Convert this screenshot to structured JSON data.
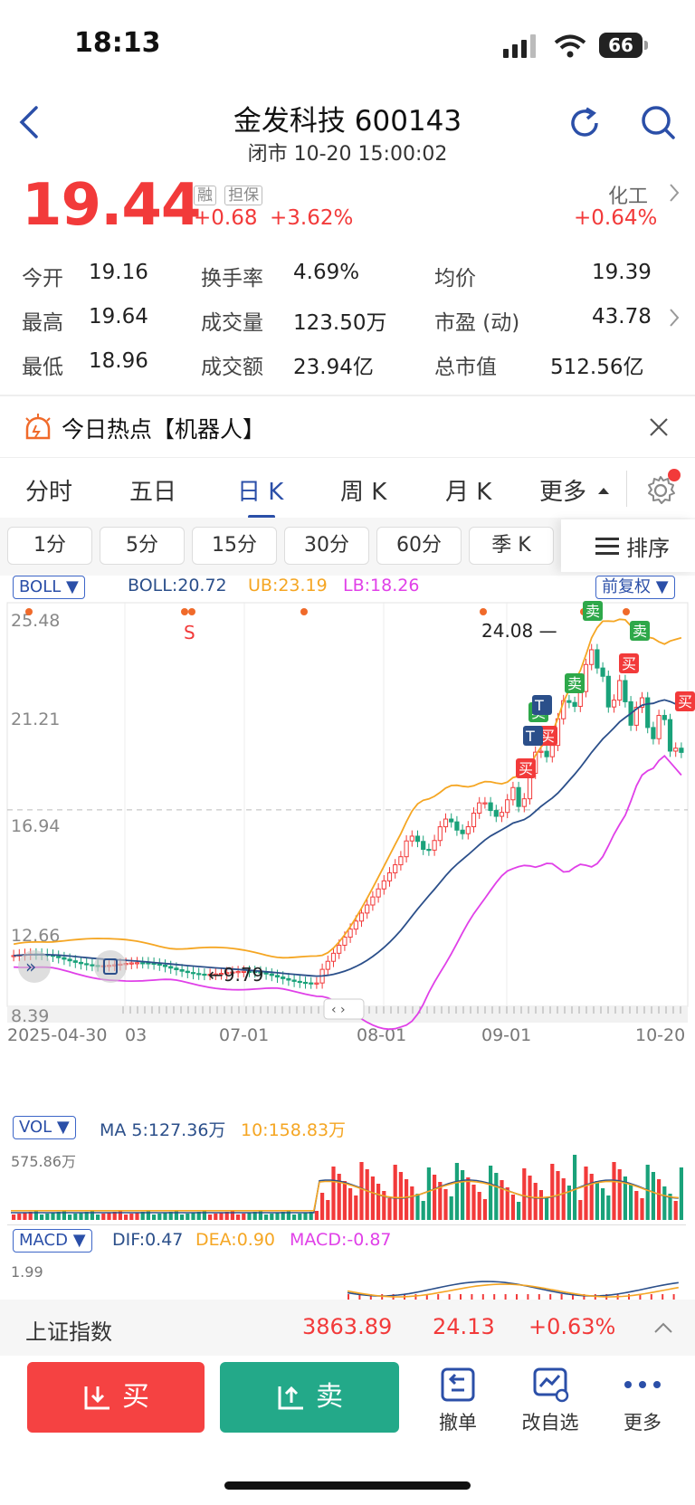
{
  "status_bar": {
    "time": "18:13",
    "battery": "66"
  },
  "header": {
    "title": "金发科技 600143",
    "subtitle": "闭市 10-20 15:00:02"
  },
  "quote": {
    "price": "19.44",
    "tag1": "融",
    "tag2": "担保",
    "change": "+0.68",
    "change_pct": "+3.62%",
    "sector_name": "化工",
    "sector_change": "+0.64%"
  },
  "stats": {
    "open_label": "今开",
    "open": "19.16",
    "turnover_label": "换手率",
    "turnover": "4.69%",
    "avg_label": "均价",
    "avg": "19.39",
    "high_label": "最高",
    "high": "19.64",
    "volume_label": "成交量",
    "volume": "123.50万",
    "pe_label": "市盈 (动)",
    "pe": "43.78",
    "low_label": "最低",
    "low": "18.96",
    "amount_label": "成交额",
    "amount": "23.94亿",
    "mcap_label": "总市值",
    "mcap": "512.56亿"
  },
  "hotspot": {
    "text": "今日热点【机器人】"
  },
  "tabs": [
    "分时",
    "五日",
    "日 K",
    "周 K",
    "月 K",
    "更多"
  ],
  "periods": [
    "1分",
    "5分",
    "15分",
    "30分",
    "60分",
    "季 K"
  ],
  "sort_label": "排序",
  "boll": {
    "name": "BOLL",
    "boll": "BOLL:20.72",
    "ub": "UB:23.19",
    "lb": "LB:18.26",
    "adjust": "前复权"
  },
  "chart_data": {
    "type": "candlestick",
    "y_ticks": [
      "25.48",
      "21.21",
      "16.94",
      "12.66",
      "8.39"
    ],
    "x_ticks": [
      "2025-04-30",
      "03",
      "07-01",
      "08-01",
      "09-01",
      "10-20"
    ],
    "max_label": "24.08",
    "min_label": "9.79",
    "last_close": 19.44,
    "reference_line": 16.94,
    "markers": {
      "s": "S",
      "buy": "买",
      "sell": "卖",
      "t": "T"
    },
    "colors": {
      "up": "#f23a3a",
      "down": "#1aa27a",
      "ub": "#f5a623",
      "mid": "#2b4f8a",
      "lb": "#e040e8"
    }
  },
  "vol": {
    "name": "VOL",
    "ma5": "MA 5:127.36万",
    "ma10": "10:158.83万",
    "max": "575.86万"
  },
  "macd": {
    "name": "MACD",
    "dif": "DIF:0.47",
    "dea": "DEA:0.90",
    "macd": "MACD:-0.87",
    "max": "1.99"
  },
  "index": {
    "name": "上证指数",
    "value": "3863.89",
    "change": "24.13",
    "pct": "+0.63%"
  },
  "actions": {
    "buy": "买",
    "sell": "卖",
    "cancel": "撤单",
    "watch": "改自选",
    "more": "更多"
  }
}
